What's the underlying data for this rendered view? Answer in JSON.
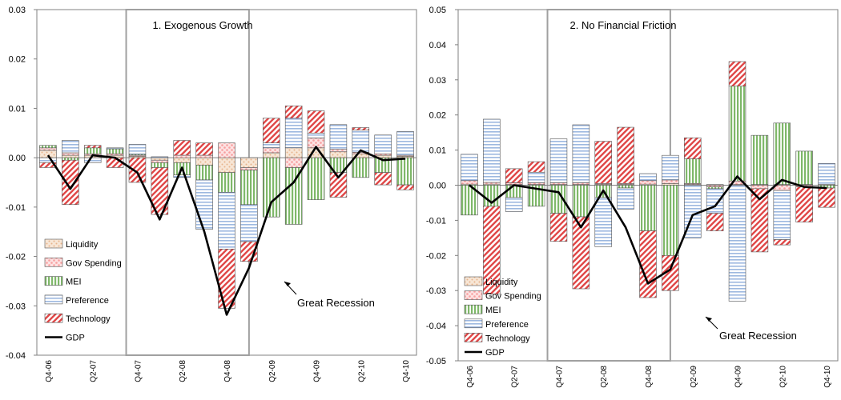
{
  "colors": {
    "liquidity": "#e8b48c",
    "gov_spending": "#f8a0a0",
    "mei": "#7fb86a",
    "preference": "#9db8e0",
    "technology": "#e04848",
    "gdp": "#000000"
  },
  "chart_data": [
    {
      "type": "bar",
      "stacked": true,
      "title": "1. Exogenous Growth",
      "categories": [
        "Q4-06",
        "Q1-07",
        "Q2-07",
        "Q3-07",
        "Q4-07",
        "Q1-08",
        "Q2-08",
        "Q3-08",
        "Q4-08",
        "Q1-09",
        "Q2-09",
        "Q3-09",
        "Q4-09",
        "Q1-10",
        "Q2-10",
        "Q3-10",
        "Q4-10"
      ],
      "tick_labels": [
        "Q4-06",
        "Q2-07",
        "Q4-07",
        "Q2-08",
        "Q4-08",
        "Q2-09",
        "Q4-09",
        "Q2-10",
        "Q4-10"
      ],
      "ylim": [
        -0.04,
        0.03
      ],
      "yticks": [
        "0.03",
        "0.02",
        "0.01",
        "0.00",
        "-0.01",
        "-0.02",
        "-0.03",
        "-0.04"
      ],
      "shaded_spans": [
        [
          4,
          9
        ]
      ],
      "series": [
        {
          "name": "Liquidity",
          "key": "liquidity",
          "values": [
            0.0015,
            0.0005,
            0.0005,
            0.0005,
            0.0003,
            -0.0005,
            -0.001,
            -0.0015,
            -0.003,
            -0.002,
            0.001,
            0.002,
            0.002,
            0.0012,
            0.0008,
            0.0005,
            0.0003
          ]
        },
        {
          "name": "Gov Spending",
          "key": "gov_spending",
          "values": [
            0.0005,
            0.0005,
            0.0003,
            0.0003,
            0.0002,
            -0.0005,
            0.0005,
            0.0005,
            0.003,
            -0.0005,
            0.001,
            -0.002,
            0.002,
            0.0005,
            0.0003,
            0.0003,
            0.0002
          ]
        },
        {
          "name": "MEI",
          "key": "mei",
          "values": [
            0.0005,
            -0.0005,
            0.0012,
            0.001,
            0.0002,
            -0.001,
            -0.0025,
            -0.003,
            -0.004,
            -0.007,
            -0.012,
            -0.0115,
            -0.0085,
            -0.003,
            -0.004,
            -0.003,
            -0.0055
          ]
        },
        {
          "name": "Preference",
          "key": "preference",
          "values": [
            -0.001,
            0.0025,
            -0.001,
            0.0002,
            0.002,
            0.0002,
            -0.0005,
            -0.01,
            -0.0115,
            -0.0075,
            0.001,
            0.006,
            0.001,
            0.005,
            0.0045,
            0.0038,
            0.0048
          ]
        },
        {
          "name": "Technology",
          "key": "technology",
          "values": [
            -0.001,
            -0.009,
            0.0005,
            -0.002,
            -0.005,
            -0.0095,
            0.003,
            0.0025,
            -0.012,
            -0.004,
            0.005,
            0.0025,
            0.0045,
            -0.005,
            0.0005,
            -0.0025,
            -0.001
          ]
        }
      ],
      "gdp": [
        0.0005,
        -0.0063,
        0.0005,
        0.0,
        -0.003,
        -0.0125,
        -0.002,
        -0.015,
        -0.0318,
        -0.0223,
        -0.009,
        -0.005,
        0.0022,
        -0.004,
        0.0015,
        -0.0005,
        -0.0002
      ],
      "legend": [
        "Liquidity",
        "Gov Spending",
        "MEI",
        "Preference",
        "Technology",
        "GDP"
      ],
      "legend_placement": "bottom-left",
      "annotation": "Great Recession",
      "grid": false
    },
    {
      "type": "bar",
      "stacked": true,
      "title": "2. No Financial Friction",
      "categories": [
        "Q4-06",
        "Q1-07",
        "Q2-07",
        "Q3-07",
        "Q4-07",
        "Q1-08",
        "Q2-08",
        "Q3-08",
        "Q4-08",
        "Q1-09",
        "Q2-09",
        "Q3-09",
        "Q4-09",
        "Q1-10",
        "Q2-10",
        "Q3-10",
        "Q4-10"
      ],
      "tick_labels": [
        "Q4-06",
        "Q2-07",
        "Q4-07",
        "Q2-08",
        "Q4-08",
        "Q2-09",
        "Q4-09",
        "Q2-10",
        "Q4-10"
      ],
      "ylim": [
        -0.05,
        0.05
      ],
      "yticks": [
        "0.05",
        "0.04",
        "0.03",
        "0.02",
        "0.01",
        "0.00",
        "-0.01",
        "-0.02",
        "-0.03",
        "-0.04",
        "-0.05"
      ],
      "shaded_spans": [
        [
          4,
          9
        ]
      ],
      "series": [
        {
          "name": "Liquidity",
          "key": "liquidity",
          "values": [
            0.0003,
            0.0003,
            0.0002,
            0.0002,
            0.0002,
            0.0002,
            0.0002,
            0.0002,
            0.0003,
            0.0005,
            0.0002,
            0.0002,
            0.0002,
            0.0002,
            0.0002,
            0.0002,
            0.0002
          ]
        },
        {
          "name": "Gov Spending",
          "key": "gov_spending",
          "values": [
            0.001,
            0.0005,
            0.0005,
            0.0005,
            0.0005,
            0.0005,
            0.0003,
            0.0003,
            0.001,
            0.001,
            0.0003,
            -0.0005,
            0.001,
            -0.001,
            -0.0015,
            -0.0005,
            0.0
          ]
        },
        {
          "name": "MEI",
          "key": "mei",
          "values": [
            -0.0085,
            -0.006,
            -0.0035,
            -0.006,
            -0.008,
            -0.009,
            -0.0035,
            -0.0008,
            -0.013,
            -0.02,
            0.007,
            -0.0005,
            0.027,
            0.014,
            0.0175,
            0.0095,
            -0.0008
          ]
        },
        {
          "name": "Preference",
          "key": "preference",
          "values": [
            0.0075,
            0.018,
            -0.004,
            0.003,
            0.0125,
            0.0165,
            -0.014,
            -0.006,
            0.002,
            0.007,
            -0.015,
            -0.007,
            -0.033,
            0.0,
            -0.014,
            0.0,
            0.006
          ]
        },
        {
          "name": "Technology",
          "key": "technology",
          "values": [
            0.0,
            -0.025,
            0.004,
            0.003,
            -0.008,
            -0.0205,
            0.012,
            0.016,
            -0.019,
            -0.01,
            0.006,
            -0.005,
            0.007,
            -0.018,
            -0.0015,
            -0.01,
            -0.0055
          ]
        }
      ],
      "gdp": [
        0.0,
        -0.005,
        0.0,
        -0.001,
        -0.002,
        -0.012,
        -0.0015,
        -0.012,
        -0.028,
        -0.024,
        -0.0085,
        -0.006,
        0.0025,
        -0.004,
        0.0015,
        -0.0005,
        -0.0008
      ],
      "legend": [
        "Liquidity",
        "Gov Spending",
        "MEI",
        "Preference",
        "Technology",
        "GDP"
      ],
      "legend_placement": "bottom-left",
      "annotation": "Great Recession",
      "grid": false
    }
  ]
}
